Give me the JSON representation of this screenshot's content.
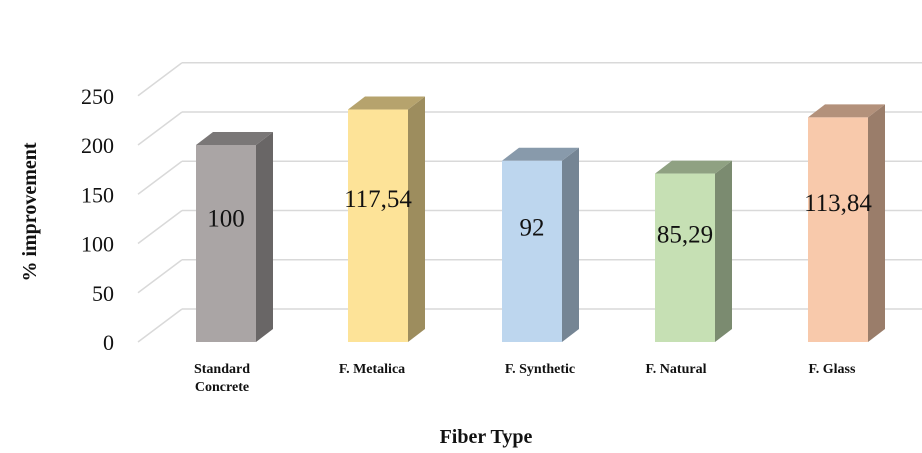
{
  "chart_data": {
    "type": "bar",
    "style": "3d-column",
    "xlabel": "Fiber Type",
    "ylabel": "% improvement",
    "ylim": [
      0,
      250
    ],
    "yticks": [
      0,
      50,
      100,
      150,
      200,
      250
    ],
    "grid": true,
    "categories": [
      [
        "Standard",
        "Concrete"
      ],
      [
        "F. Metalica"
      ],
      [
        "F. Synthetic"
      ],
      [
        "F. Natural"
      ],
      [
        "F. Glass"
      ]
    ],
    "values": [
      200,
      236,
      184,
      171,
      228
    ],
    "data_labels": [
      "100",
      "117,54",
      "92",
      "85,29",
      "113,84"
    ],
    "colors": [
      "#aaa5a5",
      "#fde398",
      "#bdd6ee",
      "#c6e0b4",
      "#f8c9ab"
    ]
  }
}
